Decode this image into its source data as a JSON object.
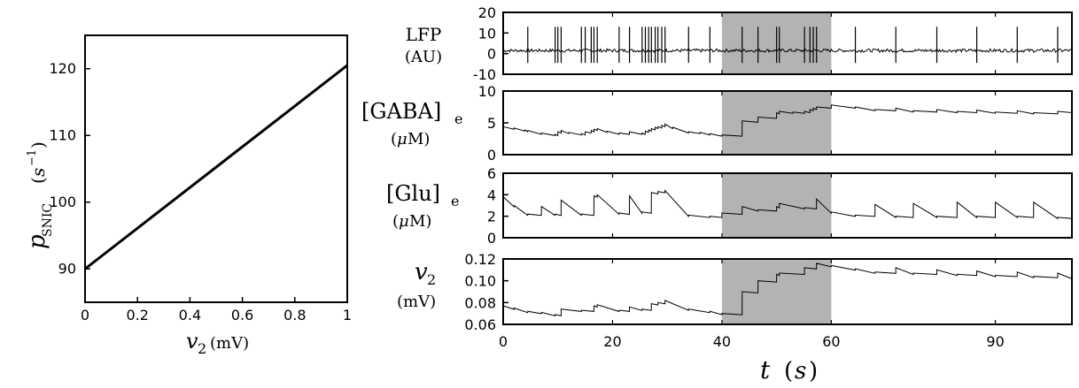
{
  "chart_data": [
    {
      "type": "line",
      "xlabel": "v2 (mV)",
      "ylabel": "p_SNIC (s^-1)",
      "xlim": [
        0,
        1
      ],
      "ylim": [
        85,
        125
      ],
      "xticks": [
        "0",
        "0.2",
        "0.4",
        "0.6",
        "0.8",
        "1"
      ],
      "yticks": [
        "90",
        "100",
        "110",
        "120"
      ],
      "x": [
        0,
        1
      ],
      "y": [
        90,
        120.5
      ]
    },
    {
      "type": "line",
      "shared_xlabel": "t (s)",
      "xlim": [
        0,
        104
      ],
      "xticks": [
        "0",
        "20",
        "40",
        "60",
        "90"
      ],
      "highlight_interval": [
        40,
        60
      ],
      "highlight_color": "#b3b3b3",
      "panels": [
        {
          "ylabel_main": "LFP",
          "ylabel_unit": "(AU)",
          "ylim": [
            -10,
            20
          ],
          "yticks": [
            "20",
            "10",
            "0",
            "-10"
          ],
          "baseline": 1.5,
          "spike_times": [
            4.5,
            9.5,
            10.0,
            10.6,
            14.3,
            15.0,
            16.1,
            16.6,
            17.2,
            21.2,
            23.1,
            25.4,
            26.0,
            26.6,
            27.1,
            27.8,
            28.3,
            29.0,
            29.6,
            33.9,
            37.8,
            43.7,
            46.6,
            50.0,
            50.5,
            55.1,
            56.1,
            56.7,
            57.3,
            64.4,
            71.8,
            79.3,
            86.6,
            94.0,
            101.4
          ]
        },
        {
          "ylabel_main": "[GABA]e",
          "ylabel_unit": "(μM)",
          "ylim": [
            0,
            10
          ],
          "yticks": [
            "10",
            "5",
            "0"
          ],
          "x": [
            0,
            2,
            4,
            4.5,
            7,
            9.5,
            10,
            10.6,
            12,
            14.3,
            15,
            16.1,
            16.6,
            17.2,
            19,
            21.2,
            23.1,
            25.4,
            26,
            26.6,
            27.1,
            27.8,
            28.3,
            29,
            29.6,
            31,
            33.9,
            36,
            37.8,
            40,
            43.7,
            46.6,
            50,
            50.5,
            53,
            55.1,
            56.1,
            56.7,
            57.3,
            60,
            64.4,
            68,
            71.8,
            75,
            79.3,
            83,
            86.6,
            90,
            94,
            97,
            101.4,
            104
          ],
          "y": [
            4.4,
            4.2,
            3.9,
            3.8,
            3.4,
            3.2,
            3.6,
            3.8,
            3.5,
            3.3,
            3.6,
            3.8,
            4.0,
            4.1,
            3.7,
            3.4,
            3.6,
            3.4,
            3.7,
            3.9,
            4.1,
            4.3,
            4.4,
            4.6,
            4.8,
            4.3,
            3.6,
            3.5,
            3.3,
            3.1,
            5.3,
            5.9,
            6.6,
            6.8,
            6.7,
            6.8,
            7.1,
            7.3,
            7.5,
            7.8,
            7.5,
            7.1,
            7.3,
            6.9,
            7.1,
            6.8,
            7.0,
            6.7,
            6.9,
            6.6,
            6.8,
            6.9
          ]
        },
        {
          "ylabel_main": "[Glu]e",
          "ylabel_unit": "(μM)",
          "ylim": [
            0,
            6
          ],
          "yticks": [
            "6",
            "4",
            "2",
            "0"
          ],
          "x": [
            0,
            2,
            4.5,
            7,
            9.5,
            10.6,
            14.3,
            16.6,
            17.2,
            21.2,
            23.1,
            25.4,
            27.1,
            28.3,
            29.6,
            33.9,
            37.8,
            40,
            43.7,
            46.6,
            50,
            50.5,
            55.1,
            57.3,
            60,
            64.4,
            68,
            71.8,
            75,
            79.3,
            83,
            86.6,
            90,
            94,
            97,
            101.4,
            104
          ],
          "y": [
            3.8,
            3.0,
            2.2,
            2.9,
            2.2,
            3.5,
            2.2,
            3.9,
            4.0,
            2.3,
            3.9,
            2.4,
            4.2,
            4.3,
            4.4,
            2.1,
            2.0,
            2.3,
            2.9,
            2.6,
            2.9,
            3.2,
            2.8,
            3.6,
            2.4,
            2.1,
            3.1,
            2.0,
            3.2,
            2.0,
            3.3,
            2.0,
            3.3,
            2.0,
            3.3,
            1.9,
            2.0
          ]
        },
        {
          "ylabel_main": "v2",
          "ylabel_unit": "(mV)",
          "ylim": [
            0.06,
            0.12
          ],
          "yticks": [
            "0.12",
            "0.10",
            "0.08",
            "0.06"
          ],
          "x": [
            0,
            2,
            4.5,
            7,
            9.5,
            10.6,
            14.3,
            16.6,
            17.2,
            21.2,
            23.1,
            25.4,
            27.1,
            28.3,
            29.6,
            33.9,
            37.8,
            40,
            43.7,
            46.6,
            50,
            50.5,
            55.1,
            57.3,
            60,
            64.4,
            68,
            71.8,
            75,
            79.3,
            83,
            86.6,
            90,
            94,
            97,
            101.4,
            104
          ],
          "y": [
            0.077,
            0.075,
            0.072,
            0.071,
            0.069,
            0.074,
            0.073,
            0.077,
            0.078,
            0.073,
            0.076,
            0.074,
            0.079,
            0.08,
            0.082,
            0.074,
            0.072,
            0.07,
            0.09,
            0.1,
            0.106,
            0.107,
            0.112,
            0.116,
            0.114,
            0.111,
            0.108,
            0.112,
            0.107,
            0.11,
            0.106,
            0.109,
            0.105,
            0.108,
            0.104,
            0.107,
            0.103
          ]
        }
      ]
    }
  ]
}
